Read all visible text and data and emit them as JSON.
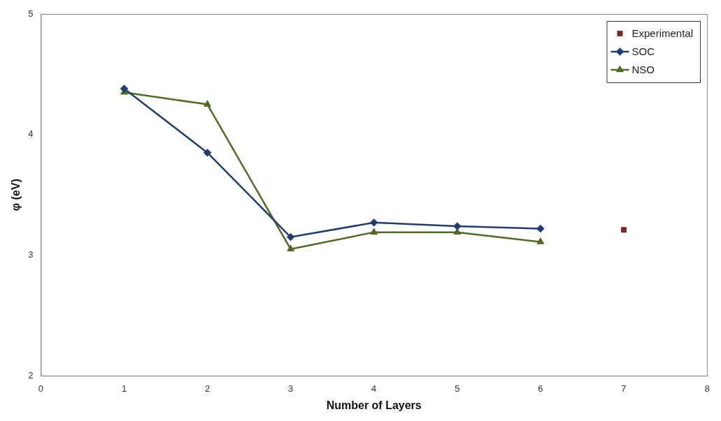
{
  "chart_data": {
    "type": "line",
    "xlabel": "Number of Layers",
    "ylabel": "φ (eV)",
    "xlim": [
      0,
      8
    ],
    "xticks": [
      0,
      1,
      2,
      3,
      4,
      5,
      6,
      7,
      8
    ],
    "ylim": [
      2,
      5
    ],
    "yticks": [
      2,
      3,
      4,
      5
    ],
    "grid": false,
    "legend": "top right",
    "series": [
      {
        "name": "Experimental",
        "type": "scatter",
        "marker": "square",
        "color": "#772c2a",
        "x": [
          7
        ],
        "values": [
          3.21
        ]
      },
      {
        "name": "SOC",
        "type": "line",
        "marker": "diamond",
        "color": "#1f3d6e",
        "x": [
          1,
          2,
          3,
          4,
          5,
          6
        ],
        "values": [
          4.38,
          3.85,
          3.15,
          3.27,
          3.24,
          3.22
        ]
      },
      {
        "name": "NSO",
        "type": "line",
        "marker": "triangle",
        "color": "#4f6b22",
        "x": [
          1,
          2,
          3,
          4,
          5,
          6
        ],
        "values": [
          4.35,
          4.25,
          3.05,
          3.19,
          3.19,
          3.11
        ]
      }
    ]
  }
}
